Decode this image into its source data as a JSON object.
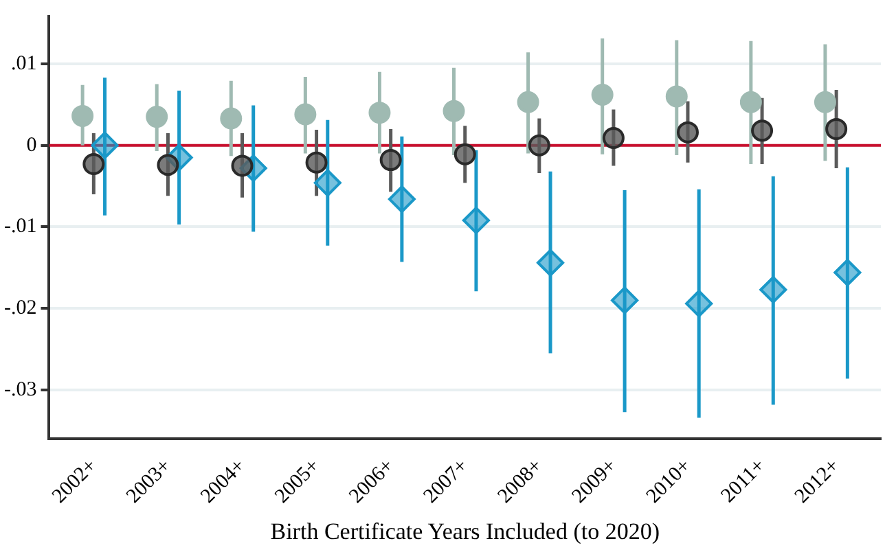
{
  "chart_data": {
    "type": "scatter",
    "xlabel": "Birth Certificate Years Included (to 2020)",
    "categories": [
      "2002+",
      "2003+",
      "2004+",
      "2005+",
      "2006+",
      "2007+",
      "2008+",
      "2009+",
      "2010+",
      "2011+",
      "2012+"
    ],
    "series": [
      {
        "color": "#9fbab2",
        "marker": "circle",
        "values": [
          0.0036,
          0.0035,
          0.0033,
          0.0038,
          0.004,
          0.0042,
          0.0053,
          0.0062,
          0.006,
          0.0053,
          0.0053
        ],
        "errors": [
          [
            0.0,
            0.0074
          ],
          [
            -0.0007,
            0.0075
          ],
          [
            -0.0013,
            0.0079
          ],
          [
            -0.001,
            0.0084
          ],
          [
            -0.001,
            0.009
          ],
          [
            -0.0012,
            0.0095
          ],
          [
            -0.001,
            0.0114
          ],
          [
            -0.0011,
            0.0131
          ],
          [
            -0.0012,
            0.0129
          ],
          [
            -0.0023,
            0.0128
          ],
          [
            -0.0019,
            0.0124
          ]
        ]
      },
      {
        "color": "#5a5a5a",
        "marker": "circle",
        "values": [
          -0.0023,
          -0.0024,
          -0.0025,
          -0.0021,
          -0.0018,
          -0.0011,
          0.0,
          0.0009,
          0.0016,
          0.0018,
          0.002
        ],
        "errors": [
          [
            -0.006,
            0.0015
          ],
          [
            -0.0062,
            0.0015
          ],
          [
            -0.0064,
            0.0015
          ],
          [
            -0.0062,
            0.0019
          ],
          [
            -0.0057,
            0.002
          ],
          [
            -0.0046,
            0.0024
          ],
          [
            -0.0034,
            0.0033
          ],
          [
            -0.0025,
            0.0044
          ],
          [
            -0.0021,
            0.0054
          ],
          [
            -0.0023,
            0.0058
          ],
          [
            -0.0028,
            0.0068
          ]
        ]
      },
      {
        "color": "#1a98c8",
        "marker": "diamond",
        "values": [
          0.0,
          -0.0015,
          -0.0028,
          -0.0046,
          -0.0066,
          -0.0092,
          -0.0144,
          -0.019,
          -0.0194,
          -0.0177,
          -0.0156
        ],
        "errors": [
          [
            -0.0086,
            0.0083
          ],
          [
            -0.0097,
            0.0067
          ],
          [
            -0.0106,
            0.0049
          ],
          [
            -0.0123,
            0.0031
          ],
          [
            -0.0143,
            0.0011
          ],
          [
            -0.0179,
            -0.0006
          ],
          [
            -0.0255,
            -0.0032
          ],
          [
            -0.0327,
            -0.0055
          ],
          [
            -0.0334,
            -0.0054
          ],
          [
            -0.0318,
            -0.0038
          ],
          [
            -0.0286,
            -0.0027
          ]
        ]
      }
    ],
    "ylim": [
      -0.036,
      0.0158
    ],
    "yticks": [
      {
        "value": 0.01,
        "label": ".01"
      },
      0,
      {
        "value": -0.01,
        "label": "-.01"
      },
      {
        "value": -0.02,
        "label": "-.02"
      },
      {
        "value": -0.03,
        "label": "-.03"
      }
    ],
    "ref_lines": [
      {
        "axis": "y",
        "value": 0,
        "color": "#c8102e"
      }
    ],
    "grid": "y",
    "legend": false
  }
}
